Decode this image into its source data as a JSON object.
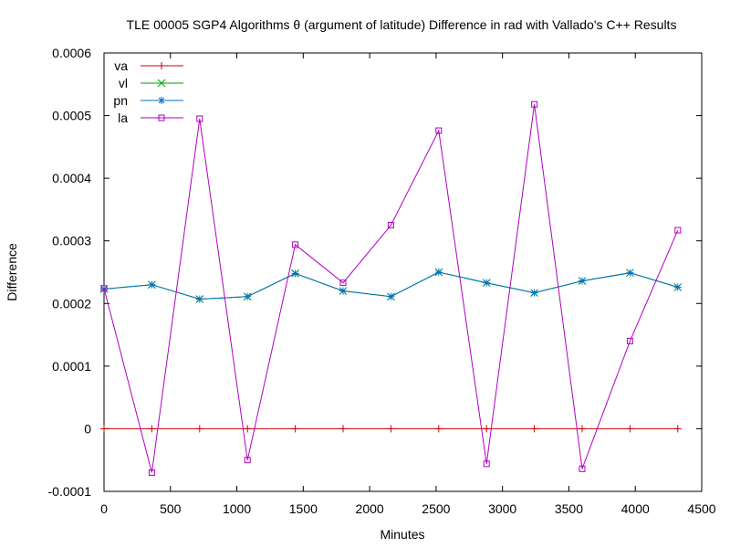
{
  "chart_data": {
    "type": "line",
    "title": "TLE 00005 SGP4 Algorithms θ (argument of latitude) Difference in rad with Vallado's C++ Results",
    "xlabel": "Minutes",
    "ylabel": "Difference",
    "xlim": [
      0,
      4500
    ],
    "ylim": [
      -0.0001,
      0.0006
    ],
    "xticks": [
      0,
      500,
      1000,
      1500,
      2000,
      2500,
      3000,
      3500,
      4000,
      4500
    ],
    "xtick_labels": [
      "0",
      "500",
      "1000",
      "1500",
      "2000",
      "2500",
      "3000",
      "3500",
      "4000",
      "4500"
    ],
    "yticks": [
      -0.0001,
      0,
      0.0001,
      0.0002,
      0.0003,
      0.0004,
      0.0005,
      0.0006
    ],
    "ytick_labels": [
      "-0.0001",
      "0",
      "0.0001",
      "0.0002",
      "0.0003",
      "0.0004",
      "0.0005",
      "0.0006"
    ],
    "grid": false,
    "legend_position": "top-left",
    "x": [
      0,
      360,
      720,
      1080,
      1440,
      1800,
      2160,
      2520,
      2880,
      3240,
      3600,
      3960,
      4320
    ],
    "series": [
      {
        "name": "va",
        "color": "#cc0000",
        "marker": "plus",
        "values": [
          0,
          0,
          0,
          0,
          0,
          0,
          0,
          0,
          0,
          0,
          0,
          0,
          0
        ]
      },
      {
        "name": "vl",
        "color": "#00a000",
        "marker": "cross",
        "values": [
          0.000223,
          0.00023,
          0.000207,
          0.000211,
          0.000248,
          0.00022,
          0.000211,
          0.00025,
          0.000233,
          0.000217,
          0.000236,
          0.000249,
          0.000226
        ]
      },
      {
        "name": "pn",
        "color": "#0070c0",
        "marker": "star",
        "values": [
          0.000223,
          0.00023,
          0.000207,
          0.000211,
          0.000248,
          0.00022,
          0.000211,
          0.00025,
          0.000233,
          0.000217,
          0.000236,
          0.000249,
          0.000226
        ]
      },
      {
        "name": "la",
        "color": "#b000c0",
        "marker": "square",
        "values": [
          0.000224,
          -7e-05,
          0.000495,
          -5e-05,
          0.000294,
          0.000233,
          0.000325,
          0.000476,
          -5.6e-05,
          0.000518,
          -6.4e-05,
          0.00014,
          0.000317
        ]
      }
    ]
  }
}
